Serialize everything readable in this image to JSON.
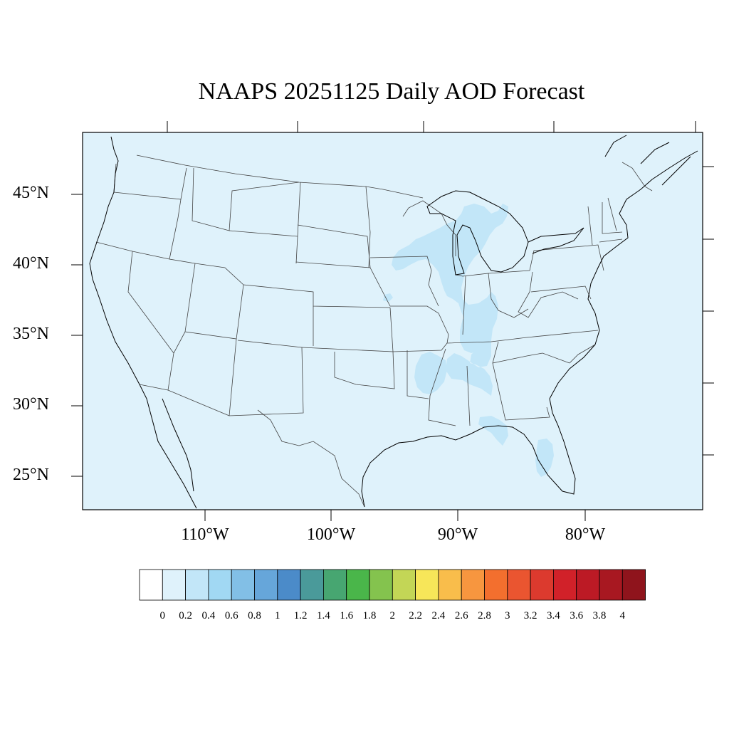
{
  "title": "NAAPS 20251125 Daily AOD Forecast",
  "colors": {
    "background_field": "#dff2fb",
    "light_aod_field": "#c2e6f8",
    "border_lines": "#444444",
    "coast_lines": "#000000"
  },
  "map": {
    "projection": "lat-lon",
    "region": "Contiguous United States",
    "lat_labels": [
      "45°N",
      "40°N",
      "35°N",
      "30°N",
      "25°N"
    ],
    "lon_labels": [
      "110°W",
      "100°W",
      "90°W",
      "80°W"
    ]
  },
  "colorbar": {
    "labels": [
      "0",
      "0.2",
      "0.4",
      "0.6",
      "0.8",
      "1",
      "1.2",
      "1.4",
      "1.6",
      "1.8",
      "2",
      "2.2",
      "2.4",
      "2.6",
      "2.8",
      "3",
      "3.2",
      "3.4",
      "3.6",
      "3.8",
      "4"
    ],
    "colors": [
      "#ffffff",
      "#dff2fb",
      "#c2e6f8",
      "#a1d8f3",
      "#82bfe6",
      "#66a6da",
      "#4b8bc9",
      "#4a9a9a",
      "#47a671",
      "#4ab64a",
      "#84c34e",
      "#c3d656",
      "#f7e659",
      "#f9bd4b",
      "#f7963f",
      "#f36f2e",
      "#ea5530",
      "#dc3a2e",
      "#d12129",
      "#bc1a25",
      "#a81821",
      "#8f141c"
    ]
  }
}
